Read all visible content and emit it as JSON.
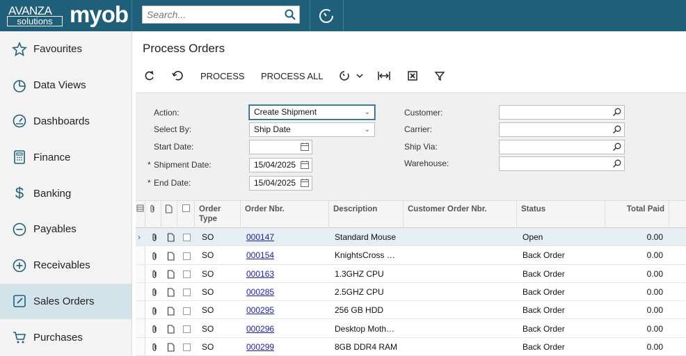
{
  "brand": {
    "avanza": "AVANZA",
    "solutions": "solutions",
    "myob": "myob"
  },
  "search": {
    "placeholder": "Search..."
  },
  "sidebar": {
    "items": [
      {
        "label": "Favourites",
        "icon": "star-icon"
      },
      {
        "label": "Data Views",
        "icon": "pie-chart-icon"
      },
      {
        "label": "Dashboards",
        "icon": "gauge-icon"
      },
      {
        "label": "Finance",
        "icon": "calculator-icon"
      },
      {
        "label": "Banking",
        "icon": "dollar-icon"
      },
      {
        "label": "Payables",
        "icon": "minus-circle-icon"
      },
      {
        "label": "Receivables",
        "icon": "plus-circle-icon"
      },
      {
        "label": "Sales Orders",
        "icon": "pencil-icon",
        "active": true
      },
      {
        "label": "Purchases",
        "icon": "cart-icon"
      }
    ]
  },
  "page": {
    "title": "Process Orders"
  },
  "toolbar": {
    "process": "PROCESS",
    "process_all": "PROCESS ALL"
  },
  "filters": {
    "action_label": "Action:",
    "action_value": "Create Shipment",
    "select_by_label": "Select By:",
    "select_by_value": "Ship Date",
    "start_date_label": "Start Date:",
    "start_date_value": "",
    "shipment_date_label": "Shipment Date:",
    "shipment_date_value": "15/04/2025",
    "end_date_label": "End Date:",
    "end_date_value": "15/04/2025",
    "required_mark": "*",
    "customer_label": "Customer:",
    "carrier_label": "Carrier:",
    "ship_via_label": "Ship Via:",
    "warehouse_label": "Warehouse:"
  },
  "grid": {
    "headers": {
      "order_type": "Order Type",
      "order_nbr": "Order Nbr.",
      "description": "Description",
      "customer_order_nbr": "Customer Order Nbr.",
      "status": "Status",
      "total_paid": "Total Paid"
    },
    "rows": [
      {
        "type": "SO",
        "nbr": "000147",
        "desc": "Standard Mouse",
        "cust": "",
        "status": "Open",
        "paid": "0.00"
      },
      {
        "type": "SO",
        "nbr": "000154",
        "desc": "KnightsCross …",
        "cust": "",
        "status": "Back Order",
        "paid": "0.00"
      },
      {
        "type": "SO",
        "nbr": "000163",
        "desc": "1.3GHZ CPU",
        "cust": "",
        "status": "Back Order",
        "paid": "0.00"
      },
      {
        "type": "SO",
        "nbr": "000285",
        "desc": "2.5GHZ CPU",
        "cust": "",
        "status": "Back Order",
        "paid": "0.00"
      },
      {
        "type": "SO",
        "nbr": "000295",
        "desc": "256 GB HDD",
        "cust": "",
        "status": "Back Order",
        "paid": "0.00"
      },
      {
        "type": "SO",
        "nbr": "000296",
        "desc": "Desktop Moth…",
        "cust": "",
        "status": "Back Order",
        "paid": "0.00"
      },
      {
        "type": "SO",
        "nbr": "000299",
        "desc": "8GB DDR4 RAM",
        "cust": "",
        "status": "Back Order",
        "paid": "0.00"
      }
    ]
  },
  "colors": {
    "topbar": "#1f5f7a",
    "active_nav": "#d2e3ea",
    "link": "#1a1ab8"
  }
}
